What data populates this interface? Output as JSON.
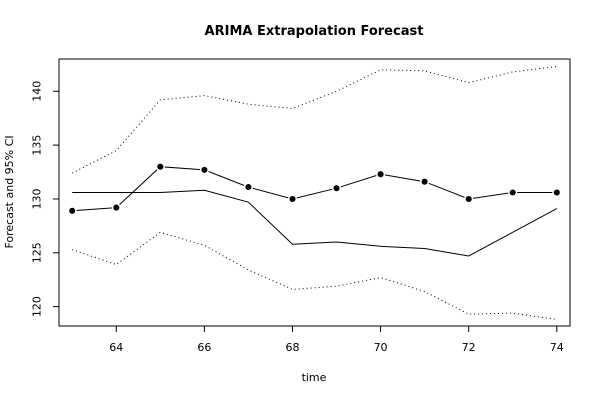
{
  "chart_data": {
    "type": "line",
    "title": "ARIMA Extrapolation Forecast",
    "xlabel": "time",
    "ylabel": "Forecast and 95% CI",
    "xlim": [
      62.7,
      74.3
    ],
    "ylim": [
      118.2,
      143.0
    ],
    "x_ticks": [
      64,
      66,
      68,
      70,
      72,
      74
    ],
    "y_ticks": [
      120,
      125,
      130,
      135,
      140
    ],
    "x": [
      63,
      64,
      65,
      66,
      67,
      68,
      69,
      70,
      71,
      72,
      73,
      74
    ],
    "series": [
      {
        "values": [
          128.9,
          129.2,
          133.0,
          132.7,
          131.1,
          130.0,
          131.0,
          132.3,
          131.6,
          130.0,
          130.6,
          130.6
        ]
      },
      {
        "values": [
          130.6,
          130.6,
          130.6,
          130.8,
          129.7,
          125.8,
          126.0,
          125.6,
          125.4,
          124.7,
          126.9,
          129.1
        ]
      },
      {
        "values": [
          132.4,
          134.5,
          139.2,
          139.6,
          138.8,
          138.4,
          140.0,
          142.0,
          141.9,
          140.8,
          141.8,
          142.3
        ]
      },
      {
        "values": [
          125.3,
          123.9,
          126.9,
          125.7,
          123.4,
          121.6,
          121.9,
          122.7,
          121.4,
          119.3,
          119.4,
          118.8
        ]
      }
    ],
    "grid": false,
    "legend": "none",
    "colors": {
      "line": "#000000",
      "background": "#ffffff"
    }
  }
}
